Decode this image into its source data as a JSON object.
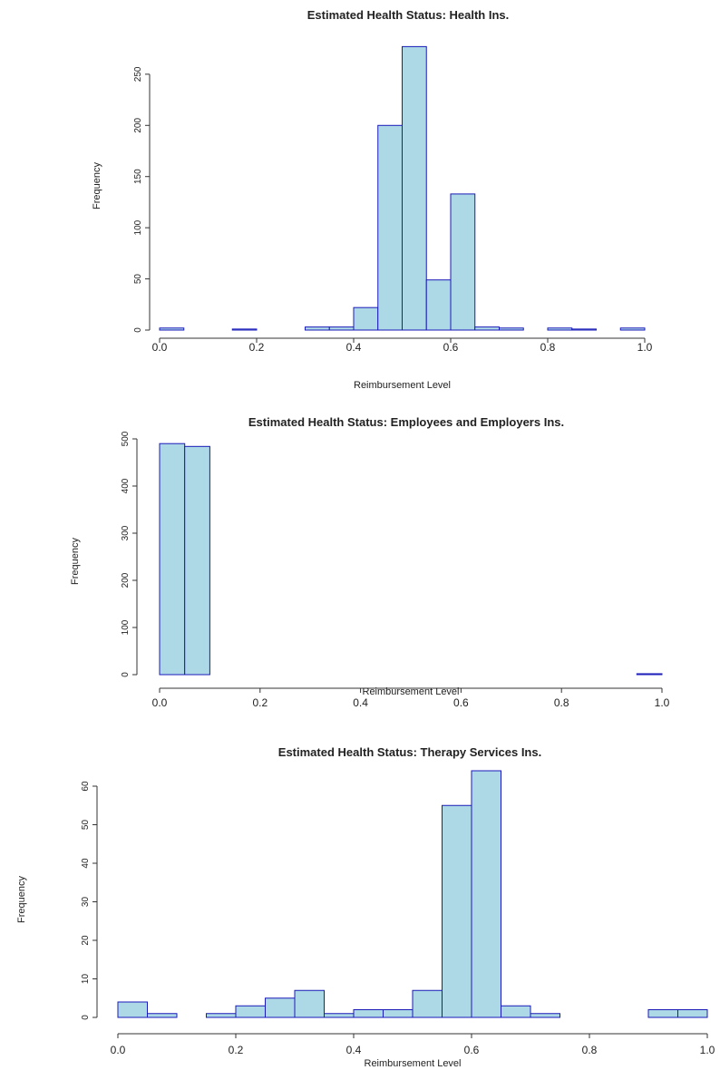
{
  "colors": {
    "bar_fill": "#add8e6",
    "bar_stroke": "#1a1ab8",
    "axis": "#333333"
  },
  "chart_data": [
    {
      "type": "bar",
      "title": "Estimated Health Status: Health Ins.",
      "xlabel": "Reimbursement Level",
      "ylabel": "Frequency",
      "xlim": [
        0,
        1
      ],
      "ylim": [
        0,
        280
      ],
      "xticks": [
        "0.0",
        "0.2",
        "0.4",
        "0.6",
        "0.8",
        "1.0"
      ],
      "yticks": [
        "0",
        "50",
        "100",
        "150",
        "200",
        "250"
      ],
      "bin_width": 0.05,
      "bins": [
        0,
        0.05,
        0.1,
        0.15,
        0.2,
        0.25,
        0.3,
        0.35,
        0.4,
        0.45,
        0.5,
        0.55,
        0.6,
        0.65,
        0.7,
        0.75,
        0.8,
        0.85,
        0.9,
        0.95
      ],
      "values": [
        2,
        0,
        0,
        1,
        0,
        0,
        3,
        3,
        22,
        200,
        277,
        49,
        133,
        3,
        2,
        0,
        2,
        1,
        0,
        2
      ]
    },
    {
      "type": "bar",
      "title": "Estimated Health Status: Employees and Employers Ins.",
      "xlabel": "Reimbursement Level",
      "ylabel": "Frequency",
      "xlim": [
        0,
        1
      ],
      "ylim": [
        0,
        500
      ],
      "xticks": [
        "0.0",
        "0.2",
        "0.4",
        "0.6",
        "0.8",
        "1.0"
      ],
      "yticks": [
        "0",
        "100",
        "200",
        "300",
        "400",
        "500"
      ],
      "bin_width": 0.05,
      "bins": [
        0,
        0.05,
        0.1,
        0.15,
        0.2,
        0.25,
        0.3,
        0.35,
        0.4,
        0.45,
        0.5,
        0.55,
        0.6,
        0.65,
        0.7,
        0.75,
        0.8,
        0.85,
        0.9,
        0.95
      ],
      "values": [
        490,
        484,
        0,
        0,
        0,
        0,
        0,
        0,
        0,
        0,
        0,
        0,
        0,
        0,
        0,
        0,
        0,
        0,
        0,
        2
      ]
    },
    {
      "type": "bar",
      "title": "Estimated Health Status: Therapy Services Ins.",
      "xlabel": "Reimbursement Level",
      "ylabel": "Frequency",
      "xlim": [
        0,
        1
      ],
      "ylim": [
        0,
        64
      ],
      "xticks": [
        "0.0",
        "0.2",
        "0.4",
        "0.6",
        "0.8",
        "1.0"
      ],
      "yticks": [
        "0",
        "10",
        "20",
        "30",
        "40",
        "50",
        "60"
      ],
      "bin_width": 0.05,
      "bins": [
        0,
        0.05,
        0.1,
        0.15,
        0.2,
        0.25,
        0.3,
        0.35,
        0.4,
        0.45,
        0.5,
        0.55,
        0.6,
        0.65,
        0.7,
        0.75,
        0.8,
        0.85,
        0.9,
        0.95
      ],
      "values": [
        4,
        1,
        0,
        1,
        3,
        5,
        7,
        1,
        2,
        2,
        7,
        55,
        64,
        3,
        1,
        0,
        0,
        0,
        2,
        2
      ]
    }
  ]
}
